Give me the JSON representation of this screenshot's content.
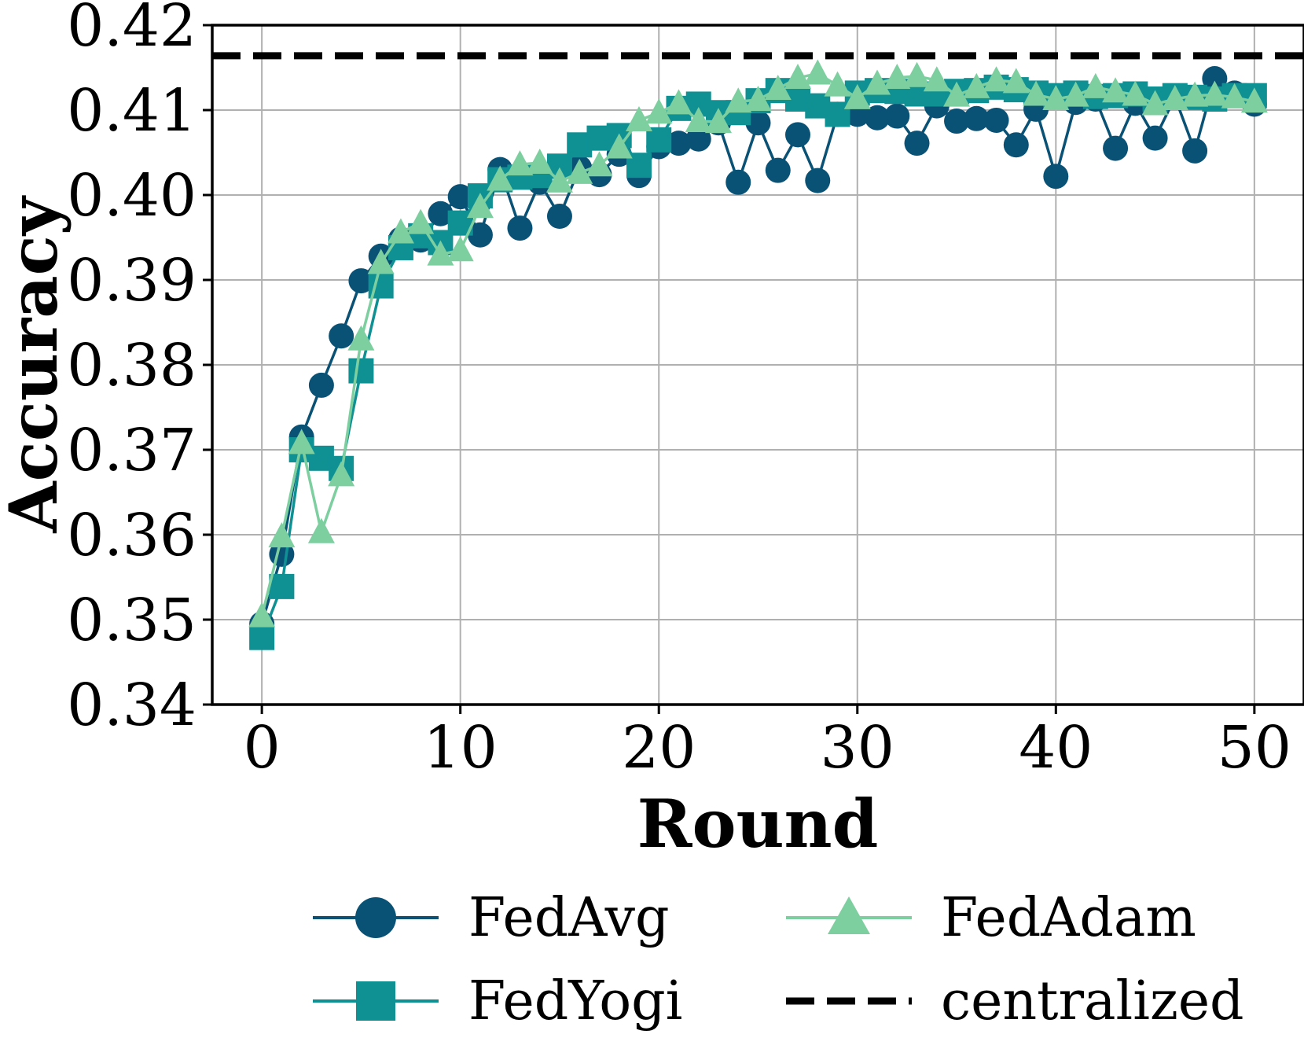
{
  "chart_data": {
    "type": "line",
    "xlabel": "Round",
    "ylabel": "Accuracy",
    "xlim": [
      -2.5,
      52.5
    ],
    "ylim": [
      0.34,
      0.42
    ],
    "xticks": [
      0,
      10,
      20,
      30,
      40,
      50
    ],
    "xtick_labels": [
      "0",
      "10",
      "20",
      "30",
      "40",
      "50"
    ],
    "yticks": [
      0.34,
      0.35,
      0.36,
      0.37,
      0.38,
      0.39,
      0.4,
      0.41,
      0.42
    ],
    "ytick_labels": [
      "0.34",
      "0.35",
      "0.36",
      "0.37",
      "0.38",
      "0.39",
      "0.40",
      "0.41",
      "0.42"
    ],
    "grid": true,
    "legend_position": "bottom",
    "x": [
      0,
      1,
      2,
      3,
      4,
      5,
      6,
      7,
      8,
      9,
      10,
      11,
      12,
      13,
      14,
      15,
      16,
      17,
      18,
      19,
      20,
      21,
      22,
      23,
      24,
      25,
      26,
      27,
      28,
      29,
      30,
      31,
      32,
      33,
      34,
      35,
      36,
      37,
      38,
      39,
      40,
      41,
      42,
      43,
      44,
      45,
      46,
      47,
      48,
      49,
      50
    ],
    "series": [
      {
        "name": "FedAvg",
        "color": "#0a5275",
        "marker": "circle",
        "values": [
          0.3495,
          0.3577,
          0.3715,
          0.3776,
          0.3834,
          0.3899,
          0.3928,
          0.3948,
          0.3947,
          0.3978,
          0.3998,
          0.3953,
          0.403,
          0.3961,
          0.4015,
          0.3975,
          0.4032,
          0.4024,
          0.4048,
          0.4023,
          0.4057,
          0.4061,
          0.4066,
          0.4085,
          0.4015,
          0.4085,
          0.4029,
          0.4071,
          0.4017,
          0.4095,
          0.4095,
          0.4091,
          0.4093,
          0.4061,
          0.4105,
          0.4087,
          0.409,
          0.4088,
          0.4059,
          0.4101,
          0.4022,
          0.4109,
          0.4113,
          0.4055,
          0.4108,
          0.4067,
          0.4115,
          0.4052,
          0.4137,
          0.412,
          0.4107
        ]
      },
      {
        "name": "FedYogi",
        "color": "#0f9194",
        "marker": "square",
        "values": [
          0.3479,
          0.3539,
          0.37,
          0.369,
          0.3678,
          0.3793,
          0.3893,
          0.3938,
          0.3952,
          0.3944,
          0.3967,
          0.3999,
          0.4018,
          0.4021,
          0.4023,
          0.4034,
          0.4059,
          0.4067,
          0.407,
          0.4035,
          0.4065,
          0.4102,
          0.4107,
          0.4097,
          0.4097,
          0.4111,
          0.4123,
          0.4113,
          0.4105,
          0.4095,
          0.412,
          0.4123,
          0.4122,
          0.4119,
          0.4119,
          0.4122,
          0.4123,
          0.4127,
          0.4124,
          0.412,
          0.4117,
          0.412,
          0.4116,
          0.4117,
          0.4119,
          0.4113,
          0.4117,
          0.4115,
          0.4113,
          0.4117,
          0.4117
        ]
      },
      {
        "name": "FedAdam",
        "color": "#7dcfa0",
        "marker": "triangle",
        "values": [
          0.3504,
          0.3598,
          0.3708,
          0.3603,
          0.367,
          0.383,
          0.392,
          0.3956,
          0.3967,
          0.393,
          0.3935,
          0.3986,
          0.4018,
          0.4036,
          0.4038,
          0.4016,
          0.4026,
          0.4035,
          0.4056,
          0.4088,
          0.4097,
          0.4108,
          0.4087,
          0.4086,
          0.411,
          0.4112,
          0.4125,
          0.4138,
          0.4143,
          0.4129,
          0.4114,
          0.4131,
          0.4138,
          0.414,
          0.4135,
          0.4117,
          0.4127,
          0.4135,
          0.4133,
          0.4118,
          0.4113,
          0.4117,
          0.4127,
          0.4122,
          0.4118,
          0.4107,
          0.4113,
          0.4117,
          0.4118,
          0.4115,
          0.411
        ]
      }
    ],
    "reference_line": {
      "name": "centralized",
      "color": "#000000",
      "style": "dashed",
      "value": 0.4164
    }
  }
}
